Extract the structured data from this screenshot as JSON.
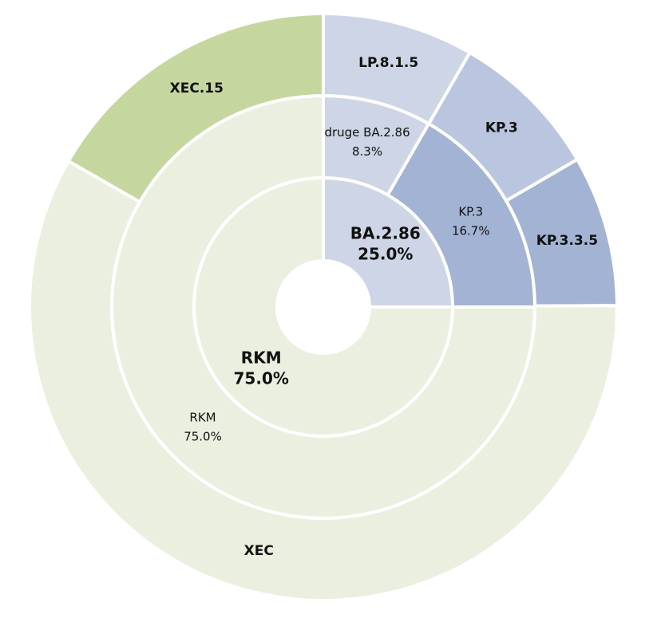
{
  "chart_data": {
    "type": "sunburst",
    "rings": [
      {
        "categories": [
          "BA.2.86",
          "RKM"
        ],
        "values": [
          25.0,
          75.0
        ],
        "value_labels": [
          "25.0%",
          "75.0%"
        ],
        "colors": [
          "#cdd5e6",
          "#ebefdf"
        ]
      },
      {
        "categories": [
          "druge BA.2.86",
          "KP.3",
          "RKM"
        ],
        "values": [
          8.3,
          16.7,
          75.0
        ],
        "value_labels": [
          "8.3%",
          "16.7%",
          "75.0%"
        ],
        "colors": [
          "#cdd5e6",
          "#a3b3d4",
          "#ebefdf"
        ]
      },
      {
        "categories": [
          "LP.8.1.5",
          "KP.3",
          "KP.3.3.5",
          "XEC",
          "XEC.15"
        ],
        "values": [
          8.3,
          8.3,
          8.3,
          58.3,
          16.7
        ],
        "colors": [
          "#cdd5e6",
          "#bac5df",
          "#a3b3d4",
          "#ebefdf",
          "#c5d79f"
        ]
      }
    ]
  }
}
